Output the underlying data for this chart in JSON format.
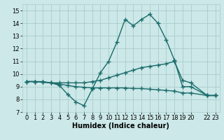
{
  "bg_color": "#cce8e8",
  "grid_color": "#aacccc",
  "line_color": "#1a6b6b",
  "line_width": 1.0,
  "marker": "+",
  "marker_size": 4,
  "marker_edge_width": 1.0,
  "xlabel": "Humidex (Indice chaleur)",
  "xlabel_fontsize": 7,
  "tick_fontsize": 6,
  "xlim": [
    -0.5,
    23.5
  ],
  "ylim": [
    7,
    15.5
  ],
  "yticks": [
    7,
    8,
    9,
    10,
    11,
    12,
    13,
    14,
    15
  ],
  "xticks": [
    0,
    1,
    2,
    3,
    4,
    5,
    6,
    7,
    8,
    9,
    10,
    11,
    12,
    13,
    14,
    15,
    16,
    17,
    18,
    19,
    20,
    22,
    23
  ],
  "lines": [
    {
      "x": [
        0,
        1,
        2,
        3,
        4,
        5,
        6,
        7,
        8,
        9,
        10,
        11,
        12,
        13,
        14,
        15,
        16,
        17,
        18,
        19,
        20,
        22,
        23
      ],
      "y": [
        9.4,
        9.4,
        9.4,
        9.3,
        9.1,
        8.4,
        7.8,
        7.5,
        8.8,
        10.1,
        11.0,
        12.5,
        14.3,
        13.8,
        14.3,
        14.7,
        14.0,
        12.7,
        11.1,
        9.0,
        9.0,
        8.3,
        8.3
      ]
    },
    {
      "x": [
        0,
        1,
        2,
        3,
        4,
        5,
        6,
        7,
        8,
        9,
        10,
        11,
        12,
        13,
        14,
        15,
        16,
        17,
        18,
        19,
        20,
        22,
        23
      ],
      "y": [
        9.4,
        9.4,
        9.35,
        9.3,
        9.3,
        9.3,
        9.3,
        9.3,
        9.4,
        9.5,
        9.7,
        9.9,
        10.1,
        10.3,
        10.5,
        10.6,
        10.7,
        10.8,
        11.0,
        9.5,
        9.3,
        8.3,
        8.3
      ]
    },
    {
      "x": [
        0,
        1,
        2,
        3,
        4,
        5,
        6,
        7,
        8,
        9,
        10,
        11,
        12,
        13,
        14,
        15,
        16,
        17,
        18,
        19,
        20,
        22,
        23
      ],
      "y": [
        9.4,
        9.4,
        9.35,
        9.3,
        9.2,
        9.1,
        9.0,
        8.95,
        8.9,
        8.9,
        8.9,
        8.9,
        8.9,
        8.85,
        8.85,
        8.8,
        8.75,
        8.7,
        8.65,
        8.5,
        8.5,
        8.3,
        8.3
      ]
    }
  ]
}
